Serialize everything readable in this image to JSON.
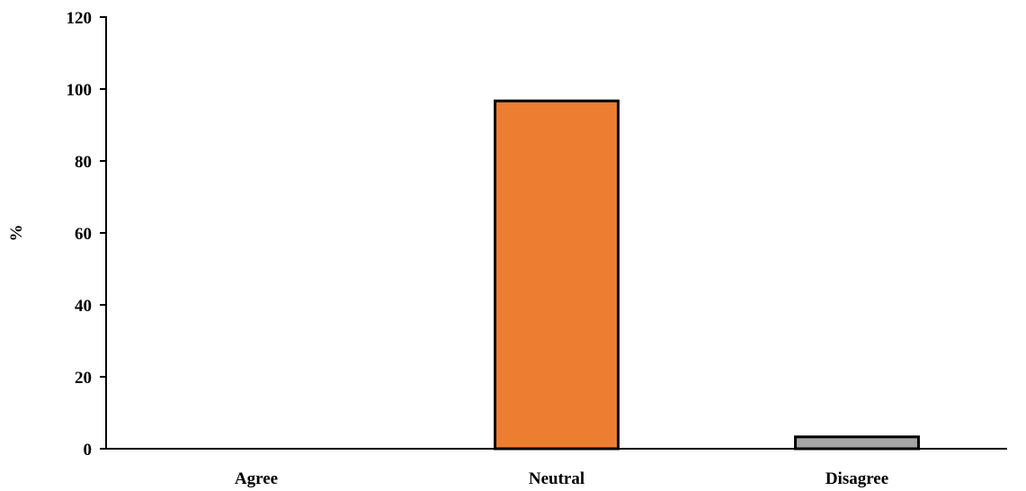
{
  "chart_data": {
    "type": "bar",
    "title": "",
    "xlabel": "",
    "ylabel": "%",
    "ylim": [
      0,
      120
    ],
    "yticks": [
      0,
      20,
      40,
      60,
      80,
      100,
      120
    ],
    "grid": false,
    "categories": [
      "Agree",
      "Neutral",
      "Disagree"
    ],
    "values": [
      0,
      96.7,
      3.3
    ],
    "colors": [
      "#4472c4",
      "#ed7d31",
      "#a5a5a5"
    ],
    "stroke_color": "#000000"
  }
}
